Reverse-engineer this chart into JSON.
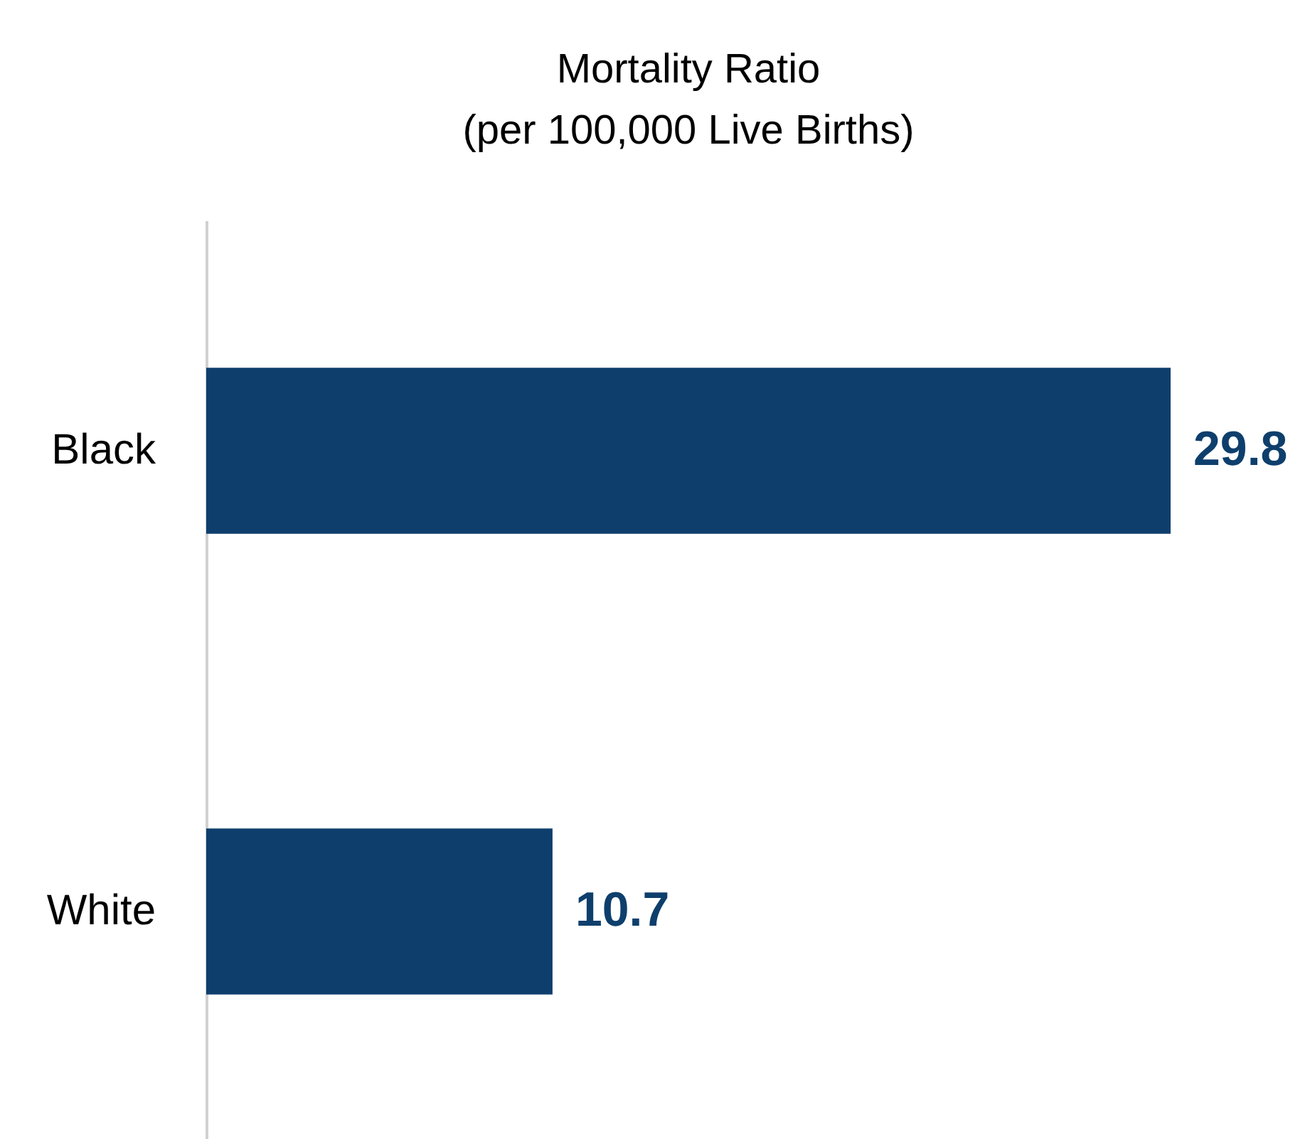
{
  "chart_data": {
    "type": "bar",
    "orientation": "horizontal",
    "title": "Mortality Ratio",
    "subtitle": "(per 100,000 Live Births)",
    "categories": [
      "Black",
      "White"
    ],
    "values": [
      29.8,
      10.7
    ],
    "color": "#0e3f6c",
    "data_labels": true,
    "tick_labels": "y"
  }
}
